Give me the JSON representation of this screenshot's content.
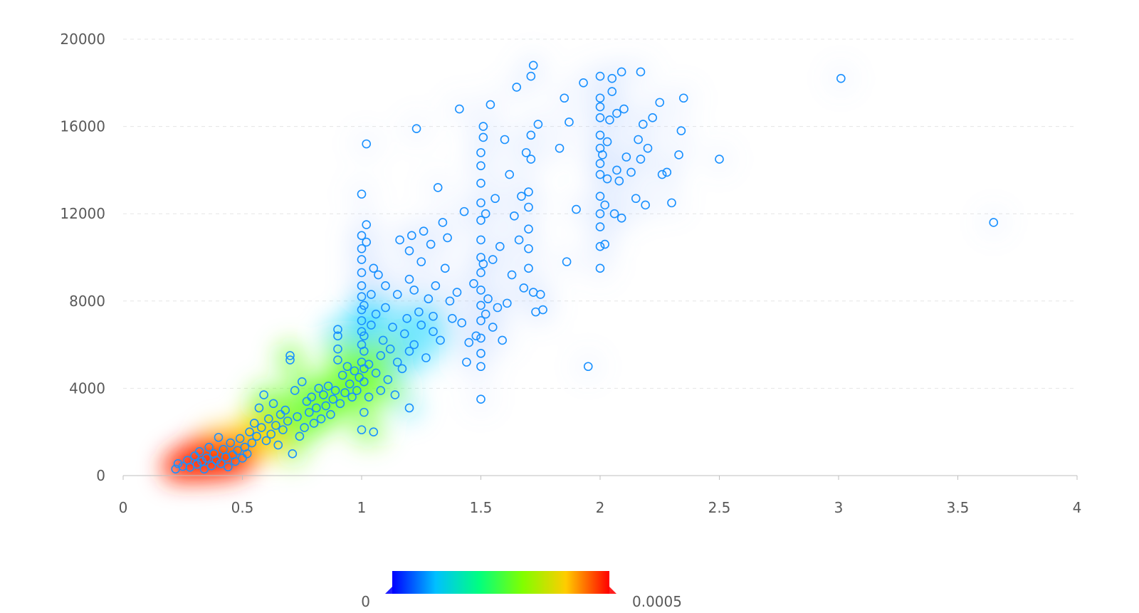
{
  "chart_data": {
    "type": "scatter",
    "title": "",
    "xlabel": "",
    "ylabel": "",
    "xlim": [
      0,
      4
    ],
    "ylim": [
      0,
      20000
    ],
    "x_ticks": [
      "0",
      "0.5",
      "1",
      "1.5",
      "2",
      "2.5",
      "3",
      "3.5",
      "4"
    ],
    "y_ticks": [
      "0",
      "4000",
      "8000",
      "12000",
      "16000",
      "20000"
    ],
    "grid": "horizontal dashed",
    "overlay": "density heatmap",
    "legend": {
      "type": "continuous color scale",
      "placement": "bottom-center",
      "min_label": "0",
      "max_label": "0.0005",
      "colors": [
        "#0000ff",
        "#00c0ff",
        "#00ff80",
        "#80ff00",
        "#ffcc00",
        "#ff0000"
      ]
    },
    "point_color": "#1890ff",
    "points": [
      [
        0.22,
        300
      ],
      [
        0.23,
        550
      ],
      [
        0.25,
        420
      ],
      [
        0.27,
        700
      ],
      [
        0.28,
        380
      ],
      [
        0.3,
        900
      ],
      [
        0.31,
        520
      ],
      [
        0.32,
        1100
      ],
      [
        0.33,
        650
      ],
      [
        0.34,
        300
      ],
      [
        0.35,
        800
      ],
      [
        0.36,
        1300
      ],
      [
        0.37,
        450
      ],
      [
        0.38,
        1000
      ],
      [
        0.39,
        700
      ],
      [
        0.4,
        1750
      ],
      [
        0.41,
        550
      ],
      [
        0.42,
        1200
      ],
      [
        0.43,
        850
      ],
      [
        0.44,
        400
      ],
      [
        0.45,
        1500
      ],
      [
        0.46,
        950
      ],
      [
        0.47,
        650
      ],
      [
        0.48,
        1150
      ],
      [
        0.49,
        1700
      ],
      [
        0.5,
        800
      ],
      [
        0.51,
        1300
      ],
      [
        0.52,
        1000
      ],
      [
        0.53,
        2000
      ],
      [
        0.54,
        1500
      ],
      [
        0.55,
        2400
      ],
      [
        0.56,
        1800
      ],
      [
        0.57,
        3100
      ],
      [
        0.58,
        2200
      ],
      [
        0.59,
        3700
      ],
      [
        0.6,
        1600
      ],
      [
        0.61,
        2600
      ],
      [
        0.62,
        1900
      ],
      [
        0.63,
        3300
      ],
      [
        0.64,
        2300
      ],
      [
        0.65,
        1400
      ],
      [
        0.66,
        2800
      ],
      [
        0.67,
        2100
      ],
      [
        0.68,
        3000
      ],
      [
        0.69,
        2500
      ],
      [
        0.7,
        5500
      ],
      [
        0.7,
        5300
      ],
      [
        0.71,
        1000
      ],
      [
        0.72,
        3900
      ],
      [
        0.73,
        2700
      ],
      [
        0.74,
        1800
      ],
      [
        0.75,
        4300
      ],
      [
        0.76,
        2200
      ],
      [
        0.77,
        3400
      ],
      [
        0.78,
        2900
      ],
      [
        0.79,
        3600
      ],
      [
        0.8,
        2400
      ],
      [
        0.81,
        3100
      ],
      [
        0.82,
        4000
      ],
      [
        0.83,
        2600
      ],
      [
        0.84,
        3700
      ],
      [
        0.85,
        3200
      ],
      [
        0.86,
        4100
      ],
      [
        0.87,
        2800
      ],
      [
        0.88,
        3500
      ],
      [
        0.89,
        3900
      ],
      [
        0.9,
        6700
      ],
      [
        0.9,
        6400
      ],
      [
        0.9,
        5800
      ],
      [
        0.9,
        5300
      ],
      [
        0.91,
        3300
      ],
      [
        0.92,
        4600
      ],
      [
        0.93,
        3800
      ],
      [
        0.94,
        5000
      ],
      [
        0.95,
        4200
      ],
      [
        0.96,
        3600
      ],
      [
        0.97,
        4800
      ],
      [
        0.98,
        3900
      ],
      [
        0.99,
        4500
      ],
      [
        1.0,
        2100
      ],
      [
        1.0,
        5200
      ],
      [
        1.0,
        6000
      ],
      [
        1.0,
        6600
      ],
      [
        1.0,
        7100
      ],
      [
        1.0,
        7600
      ],
      [
        1.0,
        8200
      ],
      [
        1.0,
        8700
      ],
      [
        1.0,
        9300
      ],
      [
        1.0,
        9900
      ],
      [
        1.0,
        10400
      ],
      [
        1.0,
        11000
      ],
      [
        1.0,
        12900
      ],
      [
        1.01,
        2900
      ],
      [
        1.01,
        4300
      ],
      [
        1.01,
        4900
      ],
      [
        1.01,
        5700
      ],
      [
        1.01,
        6400
      ],
      [
        1.01,
        7800
      ],
      [
        1.02,
        10700
      ],
      [
        1.02,
        11500
      ],
      [
        1.02,
        15200
      ],
      [
        1.03,
        3600
      ],
      [
        1.03,
        5100
      ],
      [
        1.04,
        6900
      ],
      [
        1.04,
        8300
      ],
      [
        1.05,
        9500
      ],
      [
        1.05,
        2000
      ],
      [
        1.06,
        4700
      ],
      [
        1.06,
        7400
      ],
      [
        1.07,
        9200
      ],
      [
        1.08,
        5500
      ],
      [
        1.08,
        3900
      ],
      [
        1.09,
        6200
      ],
      [
        1.1,
        7700
      ],
      [
        1.1,
        8700
      ],
      [
        1.11,
        4400
      ],
      [
        1.12,
        5800
      ],
      [
        1.13,
        6800
      ],
      [
        1.14,
        3700
      ],
      [
        1.15,
        5200
      ],
      [
        1.15,
        8300
      ],
      [
        1.16,
        10800
      ],
      [
        1.17,
        4900
      ],
      [
        1.18,
        6500
      ],
      [
        1.19,
        7200
      ],
      [
        1.2,
        3100
      ],
      [
        1.2,
        5700
      ],
      [
        1.2,
        9000
      ],
      [
        1.2,
        10300
      ],
      [
        1.21,
        11000
      ],
      [
        1.22,
        6000
      ],
      [
        1.22,
        8500
      ],
      [
        1.23,
        15900
      ],
      [
        1.24,
        7500
      ],
      [
        1.25,
        6900
      ],
      [
        1.25,
        9800
      ],
      [
        1.26,
        11200
      ],
      [
        1.27,
        5400
      ],
      [
        1.28,
        8100
      ],
      [
        1.29,
        10600
      ],
      [
        1.3,
        6600
      ],
      [
        1.3,
        7300
      ],
      [
        1.31,
        8700
      ],
      [
        1.32,
        13200
      ],
      [
        1.33,
        6200
      ],
      [
        1.34,
        11600
      ],
      [
        1.35,
        9500
      ],
      [
        1.36,
        10900
      ],
      [
        1.37,
        8000
      ],
      [
        1.38,
        7200
      ],
      [
        1.4,
        8400
      ],
      [
        1.41,
        16800
      ],
      [
        1.42,
        7000
      ],
      [
        1.43,
        12100
      ],
      [
        1.44,
        5200
      ],
      [
        1.45,
        6100
      ],
      [
        1.47,
        8800
      ],
      [
        1.48,
        6400
      ],
      [
        1.5,
        3500
      ],
      [
        1.5,
        5000
      ],
      [
        1.5,
        5600
      ],
      [
        1.5,
        6300
      ],
      [
        1.5,
        7100
      ],
      [
        1.5,
        7800
      ],
      [
        1.5,
        8500
      ],
      [
        1.5,
        9300
      ],
      [
        1.5,
        10000
      ],
      [
        1.5,
        10800
      ],
      [
        1.5,
        11700
      ],
      [
        1.5,
        12500
      ],
      [
        1.5,
        13400
      ],
      [
        1.5,
        14200
      ],
      [
        1.5,
        14800
      ],
      [
        1.51,
        15500
      ],
      [
        1.51,
        16000
      ],
      [
        1.51,
        9700
      ],
      [
        1.52,
        7400
      ],
      [
        1.52,
        12000
      ],
      [
        1.53,
        8100
      ],
      [
        1.54,
        17000
      ],
      [
        1.55,
        6800
      ],
      [
        1.55,
        9900
      ],
      [
        1.56,
        12700
      ],
      [
        1.57,
        7700
      ],
      [
        1.58,
        10500
      ],
      [
        1.59,
        6200
      ],
      [
        1.6,
        15400
      ],
      [
        1.61,
        7900
      ],
      [
        1.62,
        13800
      ],
      [
        1.63,
        9200
      ],
      [
        1.64,
        11900
      ],
      [
        1.65,
        17800
      ],
      [
        1.66,
        10800
      ],
      [
        1.67,
        12800
      ],
      [
        1.68,
        8600
      ],
      [
        1.69,
        14800
      ],
      [
        1.7,
        9500
      ],
      [
        1.7,
        10400
      ],
      [
        1.7,
        11300
      ],
      [
        1.7,
        12300
      ],
      [
        1.7,
        13000
      ],
      [
        1.71,
        14500
      ],
      [
        1.71,
        15600
      ],
      [
        1.71,
        18300
      ],
      [
        1.72,
        18800
      ],
      [
        1.72,
        8400
      ],
      [
        1.73,
        7500
      ],
      [
        1.74,
        16100
      ],
      [
        1.75,
        8300
      ],
      [
        1.76,
        7600
      ],
      [
        1.83,
        15000
      ],
      [
        1.85,
        17300
      ],
      [
        1.86,
        9800
      ],
      [
        1.87,
        16200
      ],
      [
        1.9,
        12200
      ],
      [
        1.93,
        18000
      ],
      [
        1.95,
        5000
      ],
      [
        2.0,
        9500
      ],
      [
        2.0,
        10500
      ],
      [
        2.0,
        11400
      ],
      [
        2.0,
        12000
      ],
      [
        2.0,
        12800
      ],
      [
        2.0,
        13800
      ],
      [
        2.0,
        14300
      ],
      [
        2.0,
        15000
      ],
      [
        2.0,
        15600
      ],
      [
        2.0,
        16400
      ],
      [
        2.0,
        16900
      ],
      [
        2.0,
        17300
      ],
      [
        2.0,
        18300
      ],
      [
        2.01,
        14700
      ],
      [
        2.02,
        10600
      ],
      [
        2.02,
        12400
      ],
      [
        2.03,
        13600
      ],
      [
        2.03,
        15300
      ],
      [
        2.04,
        16300
      ],
      [
        2.05,
        17600
      ],
      [
        2.05,
        18200
      ],
      [
        2.06,
        12000
      ],
      [
        2.07,
        14000
      ],
      [
        2.07,
        16600
      ],
      [
        2.08,
        13500
      ],
      [
        2.09,
        11800
      ],
      [
        2.09,
        18500
      ],
      [
        2.1,
        16800
      ],
      [
        2.11,
        14600
      ],
      [
        2.13,
        13900
      ],
      [
        2.15,
        12700
      ],
      [
        2.16,
        15400
      ],
      [
        2.17,
        18500
      ],
      [
        2.17,
        14500
      ],
      [
        2.18,
        16100
      ],
      [
        2.19,
        12400
      ],
      [
        2.2,
        15000
      ],
      [
        2.22,
        16400
      ],
      [
        2.25,
        17100
      ],
      [
        2.26,
        13800
      ],
      [
        2.28,
        13900
      ],
      [
        2.3,
        12500
      ],
      [
        2.33,
        14700
      ],
      [
        2.34,
        15800
      ],
      [
        2.35,
        17300
      ],
      [
        2.5,
        14500
      ],
      [
        3.01,
        18200
      ],
      [
        3.65,
        11600
      ]
    ]
  }
}
